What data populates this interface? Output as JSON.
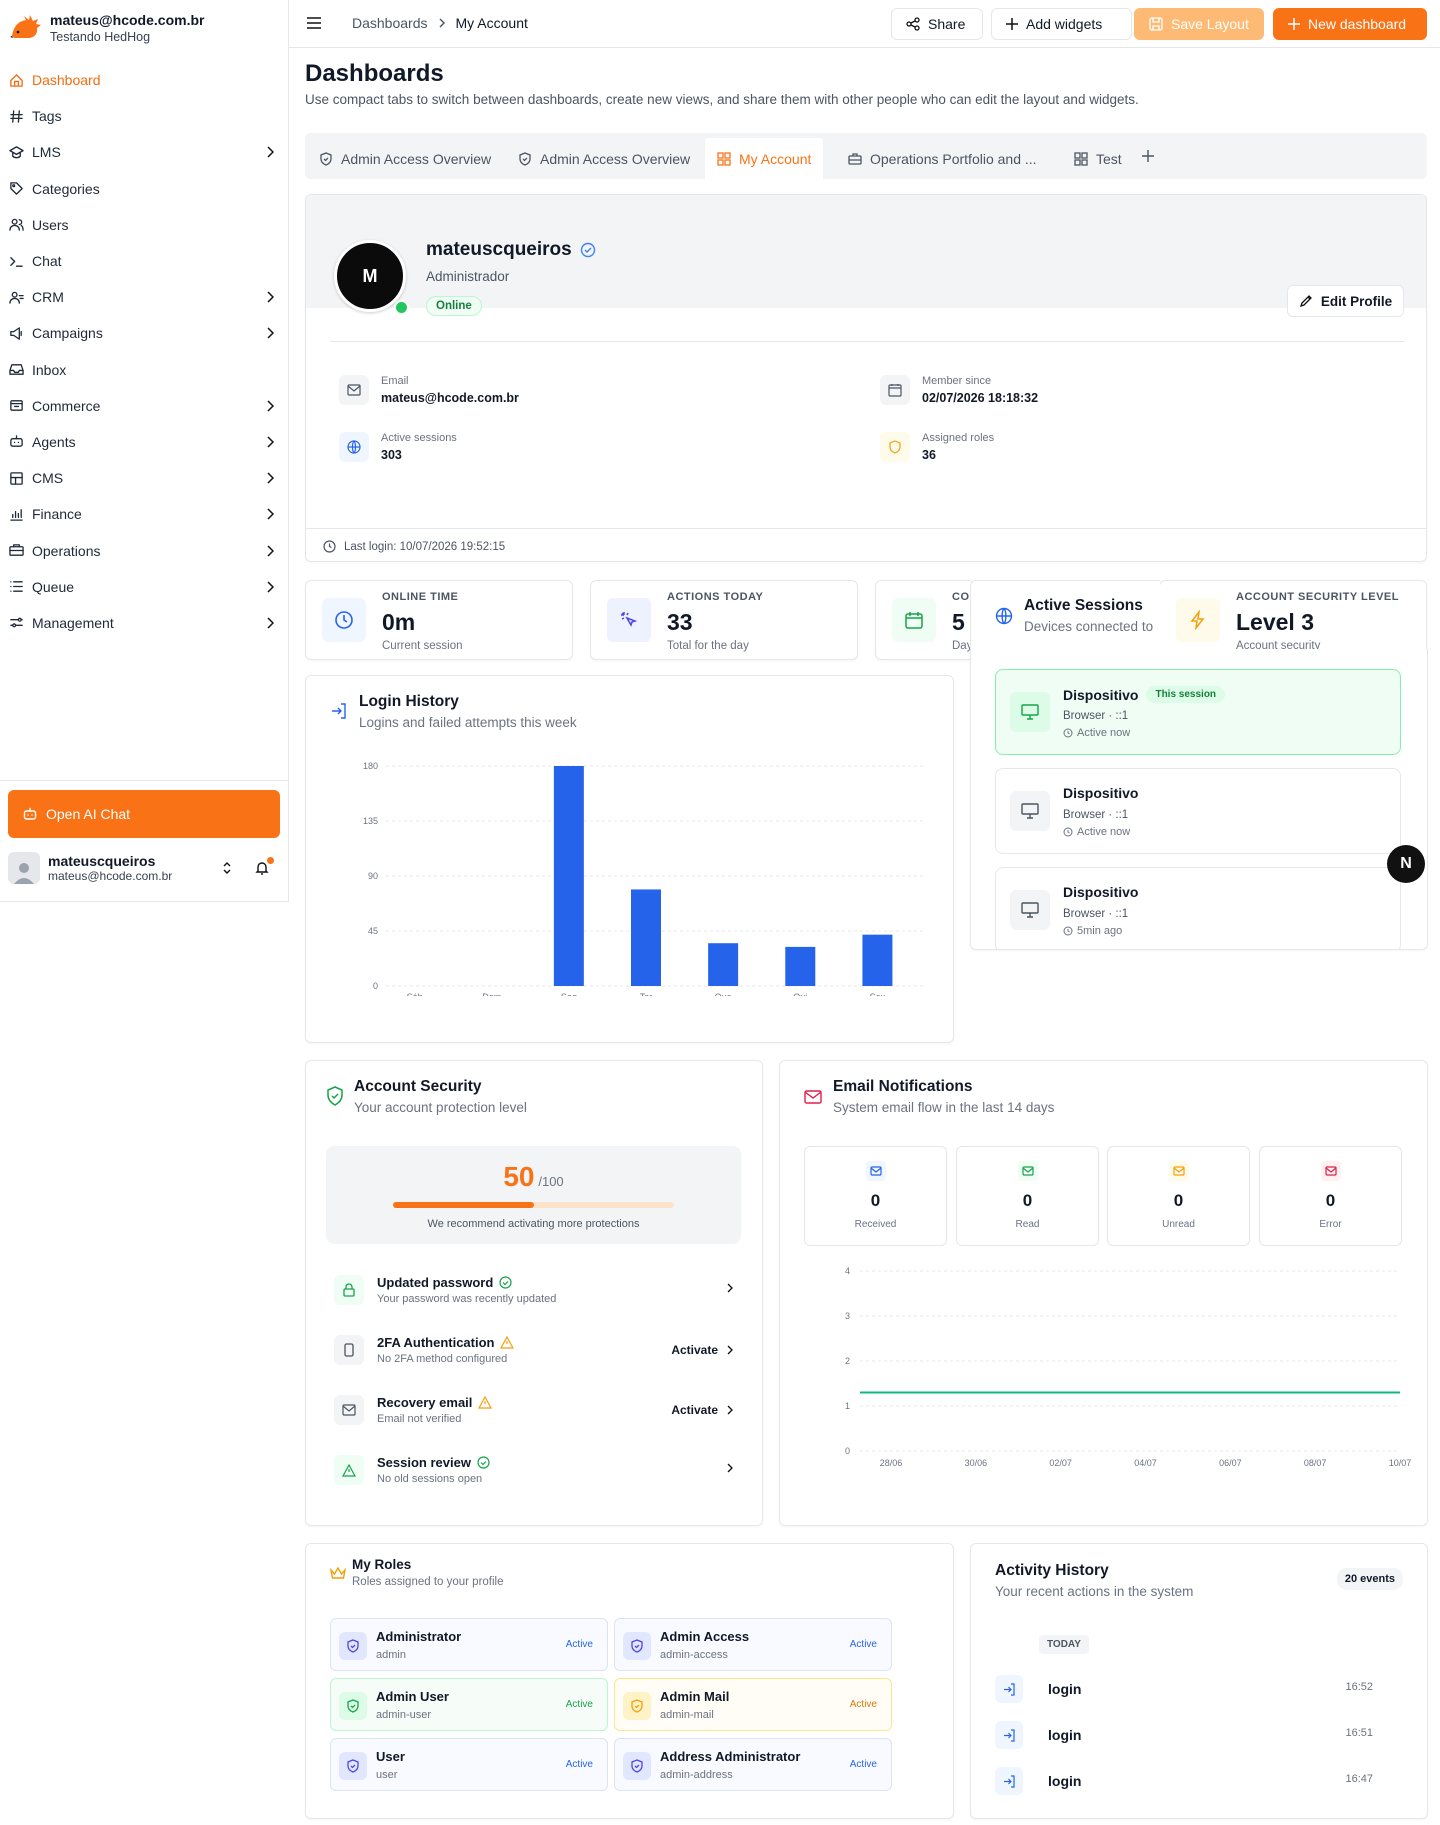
{
  "brand": {
    "email": "mateus@hcode.com.br",
    "subtitle": "Testando HedHog"
  },
  "sidebar": {
    "items": [
      {
        "label": "Dashboard",
        "icon": "home-icon",
        "chevron": false,
        "active": true
      },
      {
        "label": "Tags",
        "icon": "hash-icon",
        "chevron": false
      },
      {
        "label": "LMS",
        "icon": "school-icon",
        "chevron": true
      },
      {
        "label": "Categories",
        "icon": "tag-icon",
        "chevron": false
      },
      {
        "label": "Users",
        "icon": "users-icon",
        "chevron": false
      },
      {
        "label": "Chat",
        "icon": "terminal-icon",
        "chevron": false
      },
      {
        "label": "CRM",
        "icon": "contacts-icon",
        "chevron": true
      },
      {
        "label": "Campaigns",
        "icon": "megaphone-icon",
        "chevron": true
      },
      {
        "label": "Inbox",
        "icon": "inbox-icon",
        "chevron": false
      },
      {
        "label": "Commerce",
        "icon": "cart-icon",
        "chevron": true
      },
      {
        "label": "Agents",
        "icon": "robot-icon",
        "chevron": true
      },
      {
        "label": "CMS",
        "icon": "layout-icon",
        "chevron": true
      },
      {
        "label": "Finance",
        "icon": "chart-icon",
        "chevron": true
      },
      {
        "label": "Operations",
        "icon": "briefcase-icon",
        "chevron": true
      },
      {
        "label": "Queue",
        "icon": "list-icon",
        "chevron": true
      },
      {
        "label": "Management",
        "icon": "settings-icon",
        "chevron": true
      }
    ],
    "ai_button": "Open AI Chat",
    "user": {
      "name": "mateuscqueiros",
      "email": "mateus@hcode.com.br"
    }
  },
  "topbar": {
    "breadcrumb": [
      "Dashboards",
      "My Account"
    ],
    "share": "Share",
    "add_widgets": "Add widgets",
    "save_layout": "Save Layout",
    "new_dashboard": "New dashboard"
  },
  "page": {
    "title": "Dashboards",
    "description": "Use compact tabs to switch between dashboards, create new views, and share them with other people who can edit the layout and widgets."
  },
  "tabs": [
    {
      "label": "Admin Access Overview",
      "icon": "shield-icon"
    },
    {
      "label": "Admin Access Overview",
      "icon": "shield-icon"
    },
    {
      "label": "My Account",
      "icon": "grid-icon",
      "active": true
    },
    {
      "label": "Operations Portfolio and ...",
      "icon": "briefcase-icon"
    },
    {
      "label": "Test",
      "icon": "grid-icon"
    }
  ],
  "profile": {
    "initial": "M",
    "username": "mateuscqueiros",
    "role": "Administrador",
    "status": "Online",
    "edit_label": "Edit Profile",
    "email_label": "Email",
    "email": "mateus@hcode.com.br",
    "member_label": "Member since",
    "member_since": "02/07/2026 18:18:32",
    "sessions_label": "Active sessions",
    "sessions": "303",
    "roles_label": "Assigned roles",
    "roles": "36",
    "last_login": "Last login: 10/07/2026 19:52:15"
  },
  "stats": [
    {
      "label": "ONLINE TIME",
      "value": "0m",
      "sub": "Current session",
      "color": "#2563eb"
    },
    {
      "label": "ACTIONS TODAY",
      "value": "33",
      "sub": "Total for the day",
      "color": "#4f46e5"
    },
    {
      "label": "CO",
      "value": "5",
      "sub": "Day",
      "color": "#16a34a"
    },
    {
      "label": "ACCOUNT SECURITY LEVEL",
      "value": "Level 3",
      "sub": "Account security",
      "color": "#f59e0b"
    }
  ],
  "sessions_panel": {
    "title": "Active Sessions",
    "subtitle": "Devices connected to",
    "items": [
      {
        "name": "Dispositivo",
        "browser": "Browser · ::1",
        "status": "Active now",
        "badge": "This session",
        "current": true
      },
      {
        "name": "Dispositivo",
        "browser": "Browser · ::1",
        "status": "Active now",
        "current": false
      },
      {
        "name": "Dispositivo",
        "browser": "Browser · ::1",
        "status": "5min ago",
        "current": false
      }
    ]
  },
  "login_history": {
    "title": "Login History",
    "subtitle": "Logins and failed attempts this week"
  },
  "chart_data": [
    {
      "type": "bar",
      "categories": [
        "Sáb",
        "Dom",
        "Seg",
        "Ter",
        "Qua",
        "Qui",
        "Sex"
      ],
      "values": [
        0,
        0,
        180,
        79,
        35,
        32,
        42
      ],
      "ylim": [
        0,
        180
      ],
      "yticks": [
        "0",
        "45",
        "90",
        "135",
        "180"
      ],
      "color": "#2563eb"
    },
    {
      "type": "line",
      "x": [
        "28/06",
        "30/06",
        "02/07",
        "04/07",
        "06/07",
        "08/07",
        "10/07"
      ],
      "values": [
        1.3,
        1.3,
        1.3,
        1.3,
        1.3,
        1.3,
        1.3
      ],
      "ylim": [
        0,
        4
      ],
      "yticks": [
        "0",
        "1",
        "2",
        "3",
        "4"
      ],
      "color": "#10b981"
    }
  ],
  "security": {
    "title": "Account Security",
    "subtitle": "Your account protection level",
    "score": "50",
    "max": "/100",
    "progress": 0.5,
    "hint": "We recommend activating more protections",
    "items": [
      {
        "title": "Updated password",
        "sub": "Your password was recently updated",
        "action": "",
        "ok": true
      },
      {
        "title": "2FA Authentication",
        "sub": "No 2FA method configured",
        "action": "Activate",
        "ok": false
      },
      {
        "title": "Recovery email",
        "sub": "Email not verified",
        "action": "Activate",
        "ok": false
      },
      {
        "title": "Session review",
        "sub": "No old sessions open",
        "action": "",
        "ok": true
      }
    ]
  },
  "email": {
    "title": "Email Notifications",
    "subtitle": "System email flow in the last 14 days",
    "boxes": [
      {
        "value": "0",
        "label": "Received",
        "color": "#2563eb"
      },
      {
        "value": "0",
        "label": "Read",
        "color": "#16a34a"
      },
      {
        "value": "0",
        "label": "Unread",
        "color": "#f59e0b"
      },
      {
        "value": "0",
        "label": "Error",
        "color": "#e11d48"
      }
    ]
  },
  "roles": {
    "title": "My Roles",
    "subtitle": "Roles assigned to your profile",
    "items": [
      {
        "name": "Administrator",
        "key": "admin",
        "badge": "Active",
        "tone": "blue"
      },
      {
        "name": "Admin Access",
        "key": "admin-access",
        "badge": "Active",
        "tone": "blue"
      },
      {
        "name": "Admin User",
        "key": "admin-user",
        "badge": "Active",
        "tone": "green"
      },
      {
        "name": "Admin Mail",
        "key": "admin-mail",
        "badge": "Active",
        "tone": "amber"
      },
      {
        "name": "User",
        "key": "user",
        "badge": "Active",
        "tone": "blue"
      },
      {
        "name": "Address Administrator",
        "key": "admin-address",
        "badge": "Active",
        "tone": "blue"
      }
    ]
  },
  "activity": {
    "title": "Activity History",
    "subtitle": "Your recent actions in the system",
    "count": "20 events",
    "group": "TODAY",
    "items": [
      {
        "name": "login",
        "time": "16:52"
      },
      {
        "name": "login",
        "time": "16:51"
      },
      {
        "name": "login",
        "time": "16:47"
      }
    ]
  },
  "fab": "N"
}
